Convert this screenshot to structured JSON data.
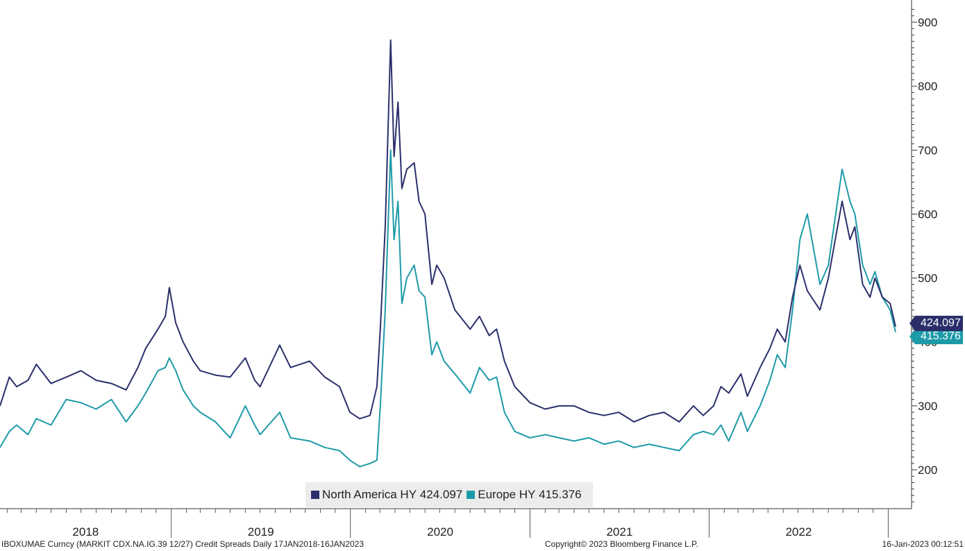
{
  "chart_data": {
    "type": "line",
    "title": "",
    "xlabel": "",
    "ylabel": "",
    "x_range": [
      "2018-01-17",
      "2023-01-16"
    ],
    "ylim": [
      140,
      930
    ],
    "y_ticks": [
      200,
      300,
      400,
      500,
      600,
      700,
      800,
      900
    ],
    "year_labels": [
      "2018",
      "2019",
      "2020",
      "2021",
      "2022"
    ],
    "grid": false,
    "legend_position": "bottom-center",
    "series": [
      {
        "name": "North America HY",
        "last_value": "424.097",
        "color": "#2a2f6b",
        "points": [
          [
            "2018-01-17",
            300
          ],
          [
            "2018-02-05",
            345
          ],
          [
            "2018-02-20",
            330
          ],
          [
            "2018-03-15",
            340
          ],
          [
            "2018-04-01",
            365
          ],
          [
            "2018-05-01",
            335
          ],
          [
            "2018-06-01",
            345
          ],
          [
            "2018-07-01",
            355
          ],
          [
            "2018-08-01",
            340
          ],
          [
            "2018-09-01",
            335
          ],
          [
            "2018-10-01",
            325
          ],
          [
            "2018-10-25",
            360
          ],
          [
            "2018-11-10",
            390
          ],
          [
            "2018-12-05",
            420
          ],
          [
            "2018-12-20",
            440
          ],
          [
            "2018-12-28",
            485
          ],
          [
            "2019-01-10",
            430
          ],
          [
            "2019-01-25",
            400
          ],
          [
            "2019-02-15",
            370
          ],
          [
            "2019-03-01",
            355
          ],
          [
            "2019-04-01",
            348
          ],
          [
            "2019-05-01",
            345
          ],
          [
            "2019-06-01",
            375
          ],
          [
            "2019-06-20",
            340
          ],
          [
            "2019-07-01",
            330
          ],
          [
            "2019-08-10",
            395
          ],
          [
            "2019-09-01",
            360
          ],
          [
            "2019-10-10",
            370
          ],
          [
            "2019-11-10",
            345
          ],
          [
            "2019-12-10",
            330
          ],
          [
            "2019-12-31",
            290
          ],
          [
            "2020-01-20",
            280
          ],
          [
            "2020-02-10",
            285
          ],
          [
            "2020-02-24",
            330
          ],
          [
            "2020-03-02",
            420
          ],
          [
            "2020-03-12",
            580
          ],
          [
            "2020-03-23",
            872
          ],
          [
            "2020-03-30",
            690
          ],
          [
            "2020-04-07",
            775
          ],
          [
            "2020-04-15",
            640
          ],
          [
            "2020-04-25",
            670
          ],
          [
            "2020-05-10",
            680
          ],
          [
            "2020-05-20",
            620
          ],
          [
            "2020-06-01",
            600
          ],
          [
            "2020-06-15",
            490
          ],
          [
            "2020-06-25",
            520
          ],
          [
            "2020-07-10",
            500
          ],
          [
            "2020-08-01",
            450
          ],
          [
            "2020-09-01",
            420
          ],
          [
            "2020-09-20",
            440
          ],
          [
            "2020-10-10",
            410
          ],
          [
            "2020-10-25",
            420
          ],
          [
            "2020-11-10",
            370
          ],
          [
            "2020-12-01",
            330
          ],
          [
            "2021-01-01",
            305
          ],
          [
            "2021-02-01",
            295
          ],
          [
            "2021-03-01",
            300
          ],
          [
            "2021-04-01",
            300
          ],
          [
            "2021-05-01",
            290
          ],
          [
            "2021-06-01",
            285
          ],
          [
            "2021-07-01",
            290
          ],
          [
            "2021-08-01",
            275
          ],
          [
            "2021-09-01",
            285
          ],
          [
            "2021-10-01",
            290
          ],
          [
            "2021-11-01",
            275
          ],
          [
            "2021-11-30",
            300
          ],
          [
            "2021-12-20",
            285
          ],
          [
            "2022-01-10",
            300
          ],
          [
            "2022-01-25",
            330
          ],
          [
            "2022-02-10",
            320
          ],
          [
            "2022-03-07",
            350
          ],
          [
            "2022-03-20",
            315
          ],
          [
            "2022-04-15",
            360
          ],
          [
            "2022-05-05",
            390
          ],
          [
            "2022-05-20",
            420
          ],
          [
            "2022-06-05",
            400
          ],
          [
            "2022-06-20",
            470
          ],
          [
            "2022-07-05",
            520
          ],
          [
            "2022-07-20",
            480
          ],
          [
            "2022-08-15",
            450
          ],
          [
            "2022-09-01",
            500
          ],
          [
            "2022-09-29",
            620
          ],
          [
            "2022-10-15",
            560
          ],
          [
            "2022-10-25",
            580
          ],
          [
            "2022-11-10",
            490
          ],
          [
            "2022-11-25",
            470
          ],
          [
            "2022-12-05",
            500
          ],
          [
            "2022-12-20",
            470
          ],
          [
            "2023-01-05",
            460
          ],
          [
            "2023-01-16",
            424.097
          ]
        ]
      },
      {
        "name": "Europe HY",
        "last_value": "415.376",
        "color": "#1d9aa8",
        "points": [
          [
            "2018-01-17",
            235
          ],
          [
            "2018-02-05",
            260
          ],
          [
            "2018-02-20",
            270
          ],
          [
            "2018-03-15",
            255
          ],
          [
            "2018-04-01",
            280
          ],
          [
            "2018-05-01",
            270
          ],
          [
            "2018-06-01",
            310
          ],
          [
            "2018-07-01",
            305
          ],
          [
            "2018-08-01",
            295
          ],
          [
            "2018-09-01",
            310
          ],
          [
            "2018-10-01",
            275
          ],
          [
            "2018-10-25",
            300
          ],
          [
            "2018-11-10",
            320
          ],
          [
            "2018-12-05",
            355
          ],
          [
            "2018-12-20",
            360
          ],
          [
            "2018-12-28",
            375
          ],
          [
            "2019-01-10",
            355
          ],
          [
            "2019-01-25",
            325
          ],
          [
            "2019-02-15",
            300
          ],
          [
            "2019-03-01",
            290
          ],
          [
            "2019-04-01",
            275
          ],
          [
            "2019-05-01",
            250
          ],
          [
            "2019-06-01",
            300
          ],
          [
            "2019-06-20",
            270
          ],
          [
            "2019-07-01",
            255
          ],
          [
            "2019-08-10",
            290
          ],
          [
            "2019-09-01",
            250
          ],
          [
            "2019-10-10",
            245
          ],
          [
            "2019-11-10",
            235
          ],
          [
            "2019-12-10",
            230
          ],
          [
            "2019-12-31",
            215
          ],
          [
            "2020-01-20",
            205
          ],
          [
            "2020-02-10",
            210
          ],
          [
            "2020-02-24",
            215
          ],
          [
            "2020-03-02",
            300
          ],
          [
            "2020-03-12",
            450
          ],
          [
            "2020-03-23",
            700
          ],
          [
            "2020-03-30",
            560
          ],
          [
            "2020-04-07",
            620
          ],
          [
            "2020-04-15",
            460
          ],
          [
            "2020-04-25",
            500
          ],
          [
            "2020-05-10",
            520
          ],
          [
            "2020-05-20",
            480
          ],
          [
            "2020-06-01",
            470
          ],
          [
            "2020-06-15",
            380
          ],
          [
            "2020-06-25",
            400
          ],
          [
            "2020-07-10",
            370
          ],
          [
            "2020-08-01",
            350
          ],
          [
            "2020-09-01",
            320
          ],
          [
            "2020-09-20",
            360
          ],
          [
            "2020-10-10",
            340
          ],
          [
            "2020-10-25",
            345
          ],
          [
            "2020-11-10",
            290
          ],
          [
            "2020-12-01",
            260
          ],
          [
            "2021-01-01",
            250
          ],
          [
            "2021-02-01",
            255
          ],
          [
            "2021-03-01",
            250
          ],
          [
            "2021-04-01",
            245
          ],
          [
            "2021-05-01",
            250
          ],
          [
            "2021-06-01",
            240
          ],
          [
            "2021-07-01",
            245
          ],
          [
            "2021-08-01",
            235
          ],
          [
            "2021-09-01",
            240
          ],
          [
            "2021-10-01",
            235
          ],
          [
            "2021-11-01",
            230
          ],
          [
            "2021-11-30",
            255
          ],
          [
            "2021-12-20",
            260
          ],
          [
            "2022-01-10",
            255
          ],
          [
            "2022-01-25",
            270
          ],
          [
            "2022-02-10",
            245
          ],
          [
            "2022-03-07",
            290
          ],
          [
            "2022-03-20",
            260
          ],
          [
            "2022-04-15",
            300
          ],
          [
            "2022-05-05",
            340
          ],
          [
            "2022-05-20",
            380
          ],
          [
            "2022-06-05",
            360
          ],
          [
            "2022-06-20",
            450
          ],
          [
            "2022-07-05",
            560
          ],
          [
            "2022-07-20",
            600
          ],
          [
            "2022-08-15",
            490
          ],
          [
            "2022-09-01",
            520
          ],
          [
            "2022-09-29",
            670
          ],
          [
            "2022-10-15",
            620
          ],
          [
            "2022-10-25",
            600
          ],
          [
            "2022-11-10",
            520
          ],
          [
            "2022-11-25",
            490
          ],
          [
            "2022-12-05",
            510
          ],
          [
            "2022-12-20",
            470
          ],
          [
            "2023-01-05",
            450
          ],
          [
            "2023-01-16",
            415.376
          ]
        ]
      }
    ]
  },
  "footer": {
    "left": "IBOXUMAE Curncy (MARKIT CDX.NA.IG.39 12/27) Credit Spreads  Daily 17JAN2018-16JAN2023",
    "center": "Copyright© 2023 Bloomberg Finance L.P.",
    "right": "16-Jan-2023 00:12:51"
  }
}
